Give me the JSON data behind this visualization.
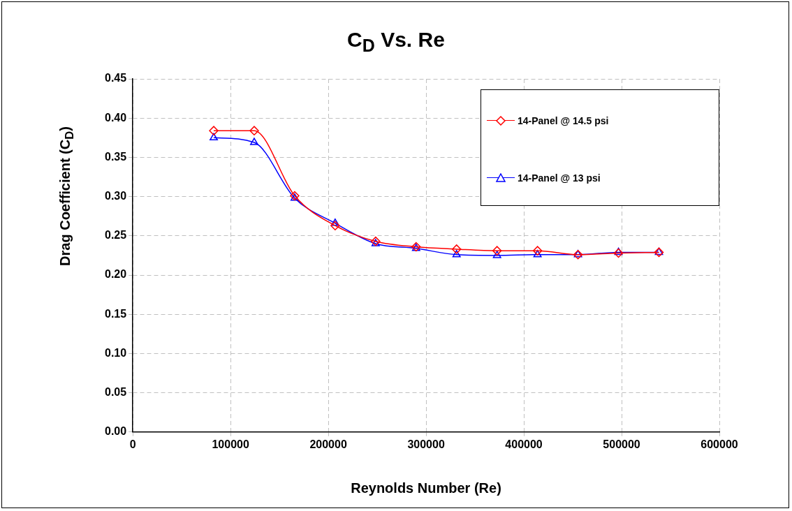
{
  "chart_data": {
    "type": "line",
    "title": "C$_{D}$ Vs. Re",
    "xlabel": "Reynolds Number (Re)",
    "ylabel": "Drag Coefficient (C$_{D}$)",
    "xlim": [
      0,
      600000
    ],
    "xticks": [
      0,
      100000,
      200000,
      300000,
      400000,
      500000,
      600000
    ],
    "ylim": [
      0,
      0.45
    ],
    "yticks": [
      {
        "value": 0,
        "label": "0.00"
      },
      {
        "value": 0.05,
        "label": "0.05"
      },
      {
        "value": 0.1,
        "label": "0.10"
      },
      {
        "value": 0.15,
        "label": "0.15"
      },
      {
        "value": 0.2,
        "label": "0.20"
      },
      {
        "value": 0.25,
        "label": "0.25"
      },
      {
        "value": 0.3,
        "label": "0.30"
      },
      {
        "value": 0.35,
        "label": "0.35"
      },
      {
        "value": 0.4,
        "label": "0.40"
      },
      {
        "value": 0.45,
        "label": "0.45"
      }
    ],
    "x": [
      82800,
      124200,
      165600,
      207000,
      248400,
      289800,
      331200,
      372600,
      414000,
      455400,
      496800,
      538200
    ],
    "series": [
      {
        "name": "14-Panel @ 14.5 psi",
        "color": "#ff0000",
        "marker": "diamond",
        "values": [
          0.384,
          0.384,
          0.301,
          0.263,
          0.243,
          0.236,
          0.233,
          0.231,
          0.231,
          0.226,
          0.228,
          0.229
        ]
      },
      {
        "name": "14-Panel @ 13 psi",
        "color": "#0000ff",
        "marker": "triangle",
        "values": [
          0.375,
          0.369,
          0.298,
          0.266,
          0.24,
          0.234,
          0.226,
          0.225,
          0.226,
          0.226,
          0.229,
          0.229
        ]
      }
    ],
    "grid": true,
    "legend": "top right",
    "line_style": "solid"
  }
}
